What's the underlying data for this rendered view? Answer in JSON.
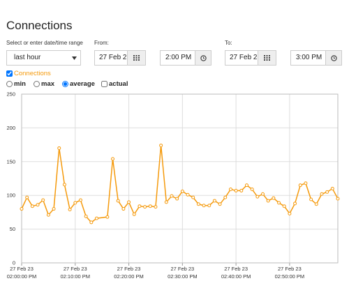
{
  "header": {
    "title": "Connections"
  },
  "range": {
    "label": "Select or enter date/time range",
    "selected": "last hour",
    "from_label": "From:",
    "from_date": "27 Feb 2",
    "from_time": "2:00 PM",
    "to_label": "To:",
    "to_date": "27 Feb 2",
    "to_time": "3:00 PM"
  },
  "options": {
    "series_label": "Connections",
    "series_checked": true,
    "modes": [
      "min",
      "max",
      "average"
    ],
    "selected_mode": 2,
    "actual_label": "actual",
    "actual_checked": false
  },
  "chart_data": {
    "type": "line",
    "color": "#f59a0c",
    "grid": true,
    "x": [
      "2023-02-27 14:00",
      "2023-02-27 14:01",
      "2023-02-27 14:02",
      "2023-02-27 14:03",
      "2023-02-27 14:04",
      "2023-02-27 14:05",
      "2023-02-27 14:06",
      "2023-02-27 14:07",
      "2023-02-27 14:08",
      "2023-02-27 14:09",
      "2023-02-27 14:10",
      "2023-02-27 14:11",
      "2023-02-27 14:12",
      "2023-02-27 14:13",
      "2023-02-27 14:14",
      "2023-02-27 14:16",
      "2023-02-27 14:17",
      "2023-02-27 14:18",
      "2023-02-27 14:19",
      "2023-02-27 14:20",
      "2023-02-27 14:21",
      "2023-02-27 14:22",
      "2023-02-27 14:23",
      "2023-02-27 14:24",
      "2023-02-27 14:25",
      "2023-02-27 14:26",
      "2023-02-27 14:27",
      "2023-02-27 14:28",
      "2023-02-27 14:29",
      "2023-02-27 14:30",
      "2023-02-27 14:31",
      "2023-02-27 14:32",
      "2023-02-27 14:33",
      "2023-02-27 14:34",
      "2023-02-27 14:35",
      "2023-02-27 14:36",
      "2023-02-27 14:37",
      "2023-02-27 14:38",
      "2023-02-27 14:39",
      "2023-02-27 14:40",
      "2023-02-27 14:41",
      "2023-02-27 14:42",
      "2023-02-27 14:43",
      "2023-02-27 14:44",
      "2023-02-27 14:45",
      "2023-02-27 14:46",
      "2023-02-27 14:47",
      "2023-02-27 14:48",
      "2023-02-27 14:49",
      "2023-02-27 14:50",
      "2023-02-27 14:51",
      "2023-02-27 14:52",
      "2023-02-27 14:53",
      "2023-02-27 14:54",
      "2023-02-27 14:55",
      "2023-02-27 14:56",
      "2023-02-27 14:57",
      "2023-02-27 14:58",
      "2023-02-27 14:59"
    ],
    "values": [
      80,
      97,
      84,
      86,
      93,
      71,
      80,
      170,
      116,
      79,
      89,
      93,
      69,
      60,
      66,
      68,
      154,
      92,
      80,
      90,
      72,
      84,
      83,
      84,
      83,
      174,
      90,
      99,
      95,
      106,
      101,
      97,
      87,
      85,
      85,
      92,
      87,
      97,
      109,
      107,
      107,
      115,
      109,
      98,
      102,
      92,
      96,
      89,
      84,
      73,
      88,
      115,
      118,
      94,
      87,
      102,
      105,
      110,
      95
    ],
    "xlim": [
      "2023-02-27 14:00",
      "2023-02-27 14:59"
    ],
    "ylim": [
      0,
      250
    ],
    "yticks": [
      0,
      50,
      100,
      150,
      200,
      250
    ],
    "xticks": [
      {
        "value": "2023-02-27 14:00",
        "label": [
          "27 Feb 23",
          "02:00:00 PM"
        ]
      },
      {
        "value": "2023-02-27 14:10",
        "label": [
          "27 Feb 23",
          "02:10:00 PM"
        ]
      },
      {
        "value": "2023-02-27 14:20",
        "label": [
          "27 Feb 23",
          "02:20:00 PM"
        ]
      },
      {
        "value": "2023-02-27 14:30",
        "label": [
          "27 Feb 23",
          "02:30:00 PM"
        ]
      },
      {
        "value": "2023-02-27 14:40",
        "label": [
          "27 Feb 23",
          "02:40:00 PM"
        ]
      },
      {
        "value": "2023-02-27 14:50",
        "label": [
          "27 Feb 23",
          "02:50:00 PM"
        ]
      }
    ]
  }
}
